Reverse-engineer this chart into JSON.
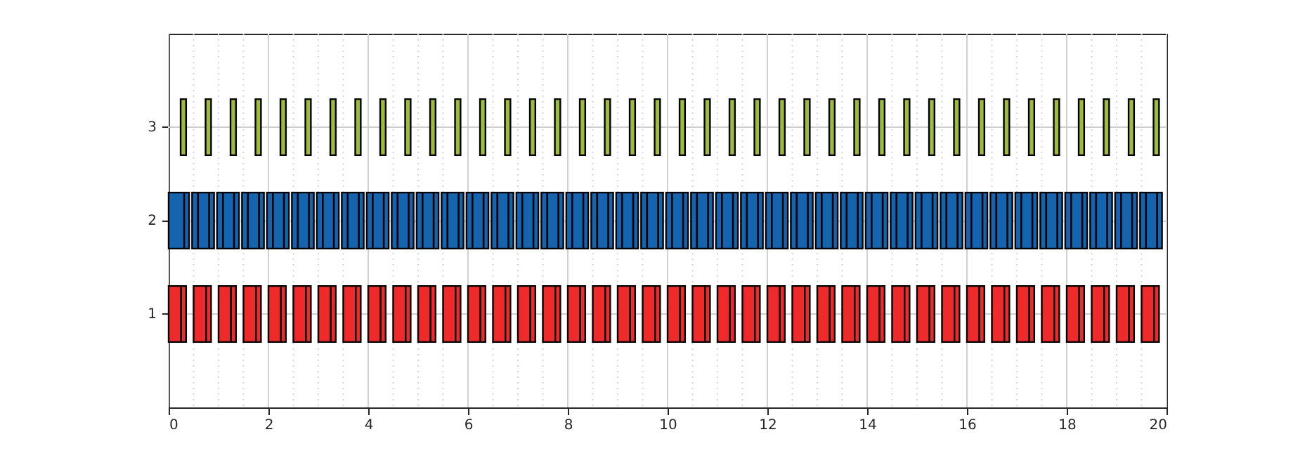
{
  "chart_data": {
    "type": "bar",
    "orientation": "horizontal",
    "categories": [
      "3",
      "2",
      "1"
    ],
    "xlim": [
      0,
      20
    ],
    "xticks": [
      0,
      {
        "value": 0.5,
        "label": null
      },
      {
        "value": 1,
        "label": null
      },
      {
        "value": 1.5,
        "label": null
      },
      2,
      {
        "value": 2.5,
        "label": null
      },
      {
        "value": 3,
        "label": null
      },
      {
        "value": 3.5,
        "label": null
      },
      4,
      {
        "value": 4.5,
        "label": null
      },
      {
        "value": 5,
        "label": null
      },
      {
        "value": 5.5,
        "label": null
      },
      6,
      {
        "value": 6.5,
        "label": null
      },
      {
        "value": 7,
        "label": null
      },
      {
        "value": 7.5,
        "label": null
      },
      8,
      {
        "value": 8.5,
        "label": null
      },
      {
        "value": 9,
        "label": null
      },
      {
        "value": 9.5,
        "label": null
      },
      10,
      {
        "value": 10.5,
        "label": null
      },
      {
        "value": 11,
        "label": null
      },
      {
        "value": 11.5,
        "label": null
      },
      12,
      {
        "value": 12.5,
        "label": null
      },
      {
        "value": 13,
        "label": null
      },
      {
        "value": 13.5,
        "label": null
      },
      14,
      {
        "value": 14.5,
        "label": null
      },
      {
        "value": 15,
        "label": null
      },
      {
        "value": 15.5,
        "label": null
      },
      16,
      {
        "value": 16.5,
        "label": null
      },
      {
        "value": 17,
        "label": null
      },
      {
        "value": 17.5,
        "label": null
      },
      18,
      {
        "value": 18.5,
        "label": null
      },
      {
        "value": 19,
        "label": null
      },
      {
        "value": 19.5,
        "label": null
      },
      20
    ],
    "grid": true,
    "series": [
      {
        "colors": [
          "#9dbb3d",
          "#1464b0",
          "#ee2a2a"
        ],
        "base": [
          0.24,
          0.31,
          0
        ],
        "values": [
          0.11,
          0.1,
          0.25
        ]
      },
      {
        "colors": [
          null,
          null,
          "#ee2a2a"
        ],
        "base": [
          null,
          null,
          0.25
        ],
        "values": [
          null,
          null,
          0.1
        ]
      },
      {
        "colors": [
          null,
          "#1464b0",
          null
        ],
        "base": [
          null,
          0,
          null
        ],
        "values": [
          null,
          0.31,
          null
        ]
      },
      {
        "colors": [
          "#9dbb3d",
          "#1464b0",
          "#ee2a2a"
        ],
        "base": [
          0.74,
          0.81,
          0.5
        ],
        "values": [
          0.11,
          0.1,
          0.25
        ]
      },
      {
        "colors": [
          null,
          "#1464b0",
          "#ee2a2a"
        ],
        "base": [
          null,
          0.47,
          0.75
        ],
        "values": [
          null,
          0.12,
          0.1
        ]
      },
      {
        "colors": [
          null,
          "#1464b0",
          null
        ],
        "base": [
          null,
          0.59,
          null
        ],
        "values": [
          null,
          0.22,
          null
        ]
      },
      {
        "colors": [
          "#9dbb3d",
          "#1464b0",
          "#ee2a2a"
        ],
        "base": [
          1.24,
          1.31,
          1
        ],
        "values": [
          0.11,
          0.1,
          0.25
        ]
      },
      {
        "colors": [
          null,
          "#1464b0",
          "#ee2a2a"
        ],
        "base": [
          null,
          0.97,
          1.25
        ],
        "values": [
          null,
          0.12,
          0.1
        ]
      },
      {
        "colors": [
          null,
          "#1464b0",
          null
        ],
        "base": [
          null,
          1.09,
          null
        ],
        "values": [
          null,
          0.22,
          null
        ]
      },
      {
        "colors": [
          "#9dbb3d",
          "#1464b0",
          "#ee2a2a"
        ],
        "base": [
          1.74,
          1.81,
          1.5
        ],
        "values": [
          0.11,
          0.1,
          0.25
        ]
      },
      {
        "colors": [
          null,
          "#1464b0",
          "#ee2a2a"
        ],
        "base": [
          null,
          1.47,
          1.75
        ],
        "values": [
          null,
          0.12,
          0.1
        ]
      },
      {
        "colors": [
          null,
          "#1464b0",
          null
        ],
        "base": [
          null,
          1.59,
          null
        ],
        "values": [
          null,
          0.22,
          null
        ]
      },
      {
        "colors": [
          "#9dbb3d",
          "#1464b0",
          "#ee2a2a"
        ],
        "base": [
          2.24,
          2.31,
          2
        ],
        "values": [
          0.11,
          0.1,
          0.25
        ]
      },
      {
        "colors": [
          null,
          "#1464b0",
          "#ee2a2a"
        ],
        "base": [
          null,
          1.97,
          2.25
        ],
        "values": [
          null,
          0.12,
          0.1
        ]
      },
      {
        "colors": [
          null,
          "#1464b0",
          null
        ],
        "base": [
          null,
          2.09,
          null
        ],
        "values": [
          null,
          0.22,
          null
        ]
      },
      {
        "colors": [
          "#9dbb3d",
          "#1464b0",
          "#ee2a2a"
        ],
        "base": [
          2.74,
          2.81,
          2.5
        ],
        "values": [
          0.11,
          0.1,
          0.25
        ]
      },
      {
        "colors": [
          null,
          "#1464b0",
          "#ee2a2a"
        ],
        "base": [
          null,
          2.47,
          2.75
        ],
        "values": [
          null,
          0.12,
          0.1
        ]
      },
      {
        "colors": [
          null,
          "#1464b0",
          null
        ],
        "base": [
          null,
          2.59,
          null
        ],
        "values": [
          null,
          0.22,
          null
        ]
      },
      {
        "colors": [
          "#9dbb3d",
          "#1464b0",
          "#ee2a2a"
        ],
        "base": [
          3.24,
          3.31,
          3
        ],
        "values": [
          0.11,
          0.1,
          0.25
        ]
      },
      {
        "colors": [
          null,
          "#1464b0",
          "#ee2a2a"
        ],
        "base": [
          null,
          2.97,
          3.25
        ],
        "values": [
          null,
          0.12,
          0.1
        ]
      },
      {
        "colors": [
          null,
          "#1464b0",
          null
        ],
        "base": [
          null,
          3.09,
          null
        ],
        "values": [
          null,
          0.22,
          null
        ]
      },
      {
        "colors": [
          "#9dbb3d",
          "#1464b0",
          "#ee2a2a"
        ],
        "base": [
          3.74,
          3.81,
          3.5
        ],
        "values": [
          0.11,
          0.1,
          0.25
        ]
      },
      {
        "colors": [
          null,
          "#1464b0",
          "#ee2a2a"
        ],
        "base": [
          null,
          3.47,
          3.75
        ],
        "values": [
          null,
          0.12,
          0.1
        ]
      },
      {
        "colors": [
          null,
          "#1464b0",
          null
        ],
        "base": [
          null,
          3.59,
          null
        ],
        "values": [
          null,
          0.22,
          null
        ]
      },
      {
        "colors": [
          "#9dbb3d",
          "#1464b0",
          "#ee2a2a"
        ],
        "base": [
          4.24,
          4.31,
          4
        ],
        "values": [
          0.11,
          0.1,
          0.25
        ]
      },
      {
        "colors": [
          null,
          "#1464b0",
          "#ee2a2a"
        ],
        "base": [
          null,
          3.97,
          4.25
        ],
        "values": [
          null,
          0.12,
          0.1
        ]
      },
      {
        "colors": [
          null,
          "#1464b0",
          null
        ],
        "base": [
          null,
          4.09,
          null
        ],
        "values": [
          null,
          0.22,
          null
        ]
      },
      {
        "colors": [
          "#9dbb3d",
          "#1464b0",
          "#ee2a2a"
        ],
        "base": [
          4.74,
          4.81,
          4.5
        ],
        "values": [
          0.11,
          0.1,
          0.25
        ]
      },
      {
        "colors": [
          null,
          "#1464b0",
          "#ee2a2a"
        ],
        "base": [
          null,
          4.47,
          4.75
        ],
        "values": [
          null,
          0.12,
          0.1
        ]
      },
      {
        "colors": [
          null,
          "#1464b0",
          null
        ],
        "base": [
          null,
          4.59,
          null
        ],
        "values": [
          null,
          0.22,
          null
        ]
      },
      {
        "colors": [
          "#9dbb3d",
          "#1464b0",
          "#ee2a2a"
        ],
        "base": [
          5.24,
          5.31,
          5
        ],
        "values": [
          0.11,
          0.1,
          0.25
        ]
      },
      {
        "colors": [
          null,
          "#1464b0",
          "#ee2a2a"
        ],
        "base": [
          null,
          4.97,
          5.25
        ],
        "values": [
          null,
          0.12,
          0.1
        ]
      },
      {
        "colors": [
          null,
          "#1464b0",
          null
        ],
        "base": [
          null,
          5.09,
          null
        ],
        "values": [
          null,
          0.22,
          null
        ]
      },
      {
        "colors": [
          "#9dbb3d",
          "#1464b0",
          "#ee2a2a"
        ],
        "base": [
          5.74,
          5.81,
          5.5
        ],
        "values": [
          0.11,
          0.1,
          0.25
        ]
      },
      {
        "colors": [
          null,
          "#1464b0",
          "#ee2a2a"
        ],
        "base": [
          null,
          5.47,
          5.75
        ],
        "values": [
          null,
          0.12,
          0.1
        ]
      },
      {
        "colors": [
          null,
          "#1464b0",
          null
        ],
        "base": [
          null,
          5.59,
          null
        ],
        "values": [
          null,
          0.22,
          null
        ]
      },
      {
        "colors": [
          "#9dbb3d",
          "#1464b0",
          "#ee2a2a"
        ],
        "base": [
          6.24,
          6.31,
          6
        ],
        "values": [
          0.11,
          0.1,
          0.25
        ]
      },
      {
        "colors": [
          null,
          "#1464b0",
          "#ee2a2a"
        ],
        "base": [
          null,
          5.97,
          6.25
        ],
        "values": [
          null,
          0.12,
          0.1
        ]
      },
      {
        "colors": [
          null,
          "#1464b0",
          null
        ],
        "base": [
          null,
          6.09,
          null
        ],
        "values": [
          null,
          0.22,
          null
        ]
      },
      {
        "colors": [
          "#9dbb3d",
          "#1464b0",
          "#ee2a2a"
        ],
        "base": [
          6.74,
          6.81,
          6.5
        ],
        "values": [
          0.11,
          0.1,
          0.25
        ]
      },
      {
        "colors": [
          null,
          "#1464b0",
          "#ee2a2a"
        ],
        "base": [
          null,
          6.47,
          6.75
        ],
        "values": [
          null,
          0.12,
          0.1
        ]
      },
      {
        "colors": [
          null,
          "#1464b0",
          null
        ],
        "base": [
          null,
          6.59,
          null
        ],
        "values": [
          null,
          0.22,
          null
        ]
      },
      {
        "colors": [
          "#9dbb3d",
          "#1464b0",
          "#ee2a2a"
        ],
        "base": [
          7.24,
          7.31,
          7
        ],
        "values": [
          0.11,
          0.1,
          0.25
        ]
      },
      {
        "colors": [
          null,
          "#1464b0",
          "#ee2a2a"
        ],
        "base": [
          null,
          6.97,
          7.25
        ],
        "values": [
          null,
          0.12,
          0.1
        ]
      },
      {
        "colors": [
          null,
          "#1464b0",
          null
        ],
        "base": [
          null,
          7.09,
          null
        ],
        "values": [
          null,
          0.22,
          null
        ]
      },
      {
        "colors": [
          "#9dbb3d",
          "#1464b0",
          "#ee2a2a"
        ],
        "base": [
          7.74,
          7.81,
          7.5
        ],
        "values": [
          0.11,
          0.1,
          0.25
        ]
      },
      {
        "colors": [
          null,
          "#1464b0",
          "#ee2a2a"
        ],
        "base": [
          null,
          7.47,
          7.75
        ],
        "values": [
          null,
          0.12,
          0.1
        ]
      },
      {
        "colors": [
          null,
          "#1464b0",
          null
        ],
        "base": [
          null,
          7.59,
          null
        ],
        "values": [
          null,
          0.22,
          null
        ]
      },
      {
        "colors": [
          "#9dbb3d",
          "#1464b0",
          "#ee2a2a"
        ],
        "base": [
          8.24,
          8.31,
          8
        ],
        "values": [
          0.11,
          0.1,
          0.25
        ]
      },
      {
        "colors": [
          null,
          "#1464b0",
          "#ee2a2a"
        ],
        "base": [
          null,
          7.97,
          8.25
        ],
        "values": [
          null,
          0.12,
          0.1
        ]
      },
      {
        "colors": [
          null,
          "#1464b0",
          null
        ],
        "base": [
          null,
          8.09,
          null
        ],
        "values": [
          null,
          0.22,
          null
        ]
      },
      {
        "colors": [
          "#9dbb3d",
          "#1464b0",
          "#ee2a2a"
        ],
        "base": [
          8.74,
          8.81,
          8.5
        ],
        "values": [
          0.11,
          0.1,
          0.25
        ]
      },
      {
        "colors": [
          null,
          "#1464b0",
          "#ee2a2a"
        ],
        "base": [
          null,
          8.47,
          8.75
        ],
        "values": [
          null,
          0.12,
          0.1
        ]
      },
      {
        "colors": [
          null,
          "#1464b0",
          null
        ],
        "base": [
          null,
          8.59,
          null
        ],
        "values": [
          null,
          0.22,
          null
        ]
      },
      {
        "colors": [
          "#9dbb3d",
          "#1464b0",
          "#ee2a2a"
        ],
        "base": [
          9.24,
          9.31,
          9
        ],
        "values": [
          0.11,
          0.1,
          0.25
        ]
      },
      {
        "colors": [
          null,
          "#1464b0",
          "#ee2a2a"
        ],
        "base": [
          null,
          8.97,
          9.25
        ],
        "values": [
          null,
          0.12,
          0.1
        ]
      },
      {
        "colors": [
          null,
          "#1464b0",
          null
        ],
        "base": [
          null,
          9.09,
          null
        ],
        "values": [
          null,
          0.22,
          null
        ]
      },
      {
        "colors": [
          "#9dbb3d",
          "#1464b0",
          "#ee2a2a"
        ],
        "base": [
          9.74,
          9.81,
          9.5
        ],
        "values": [
          0.11,
          0.1,
          0.25
        ]
      },
      {
        "colors": [
          null,
          "#1464b0",
          "#ee2a2a"
        ],
        "base": [
          null,
          9.47,
          9.75
        ],
        "values": [
          null,
          0.12,
          0.1
        ]
      },
      {
        "colors": [
          null,
          "#1464b0",
          null
        ],
        "base": [
          null,
          9.59,
          null
        ],
        "values": [
          null,
          0.22,
          null
        ]
      },
      {
        "colors": [
          "#9dbb3d",
          "#1464b0",
          "#ee2a2a"
        ],
        "base": [
          10.24,
          10.31,
          10
        ],
        "values": [
          0.11,
          0.1,
          0.25
        ]
      },
      {
        "colors": [
          null,
          "#1464b0",
          "#ee2a2a"
        ],
        "base": [
          null,
          9.97,
          10.25
        ],
        "values": [
          null,
          0.12,
          0.1
        ]
      },
      {
        "colors": [
          null,
          "#1464b0",
          null
        ],
        "base": [
          null,
          10.09,
          null
        ],
        "values": [
          null,
          0.22,
          null
        ]
      },
      {
        "colors": [
          "#9dbb3d",
          "#1464b0",
          "#ee2a2a"
        ],
        "base": [
          10.74,
          10.81,
          10.5
        ],
        "values": [
          0.11,
          0.1,
          0.25
        ]
      },
      {
        "colors": [
          null,
          "#1464b0",
          "#ee2a2a"
        ],
        "base": [
          null,
          10.47,
          10.75
        ],
        "values": [
          null,
          0.12,
          0.1
        ]
      },
      {
        "colors": [
          null,
          "#1464b0",
          null
        ],
        "base": [
          null,
          10.59,
          null
        ],
        "values": [
          null,
          0.22,
          null
        ]
      },
      {
        "colors": [
          "#9dbb3d",
          "#1464b0",
          "#ee2a2a"
        ],
        "base": [
          11.24,
          11.31,
          11
        ],
        "values": [
          0.11,
          0.1,
          0.25
        ]
      },
      {
        "colors": [
          null,
          "#1464b0",
          "#ee2a2a"
        ],
        "base": [
          null,
          10.97,
          11.25
        ],
        "values": [
          null,
          0.12,
          0.1
        ]
      },
      {
        "colors": [
          null,
          "#1464b0",
          null
        ],
        "base": [
          null,
          11.09,
          null
        ],
        "values": [
          null,
          0.22,
          null
        ]
      },
      {
        "colors": [
          "#9dbb3d",
          "#1464b0",
          "#ee2a2a"
        ],
        "base": [
          11.74,
          11.81,
          11.5
        ],
        "values": [
          0.11,
          0.1,
          0.25
        ]
      },
      {
        "colors": [
          null,
          "#1464b0",
          "#ee2a2a"
        ],
        "base": [
          null,
          11.47,
          11.75
        ],
        "values": [
          null,
          0.12,
          0.1
        ]
      },
      {
        "colors": [
          null,
          "#1464b0",
          null
        ],
        "base": [
          null,
          11.59,
          null
        ],
        "values": [
          null,
          0.22,
          null
        ]
      },
      {
        "colors": [
          "#9dbb3d",
          "#1464b0",
          "#ee2a2a"
        ],
        "base": [
          12.24,
          12.31,
          12
        ],
        "values": [
          0.11,
          0.1,
          0.25
        ]
      },
      {
        "colors": [
          null,
          "#1464b0",
          "#ee2a2a"
        ],
        "base": [
          null,
          11.97,
          12.25
        ],
        "values": [
          null,
          0.12,
          0.1
        ]
      },
      {
        "colors": [
          null,
          "#1464b0",
          null
        ],
        "base": [
          null,
          12.09,
          null
        ],
        "values": [
          null,
          0.22,
          null
        ]
      },
      {
        "colors": [
          "#9dbb3d",
          "#1464b0",
          "#ee2a2a"
        ],
        "base": [
          12.74,
          12.81,
          12.5
        ],
        "values": [
          0.11,
          0.1,
          0.25
        ]
      },
      {
        "colors": [
          null,
          "#1464b0",
          "#ee2a2a"
        ],
        "base": [
          null,
          12.47,
          12.75
        ],
        "values": [
          null,
          0.12,
          0.1
        ]
      },
      {
        "colors": [
          null,
          "#1464b0",
          null
        ],
        "base": [
          null,
          12.59,
          null
        ],
        "values": [
          null,
          0.22,
          null
        ]
      },
      {
        "colors": [
          "#9dbb3d",
          "#1464b0",
          "#ee2a2a"
        ],
        "base": [
          13.24,
          13.31,
          13
        ],
        "values": [
          0.11,
          0.1,
          0.25
        ]
      },
      {
        "colors": [
          null,
          "#1464b0",
          "#ee2a2a"
        ],
        "base": [
          null,
          12.97,
          13.25
        ],
        "values": [
          null,
          0.12,
          0.1
        ]
      },
      {
        "colors": [
          null,
          "#1464b0",
          null
        ],
        "base": [
          null,
          13.09,
          null
        ],
        "values": [
          null,
          0.22,
          null
        ]
      },
      {
        "colors": [
          "#9dbb3d",
          "#1464b0",
          "#ee2a2a"
        ],
        "base": [
          13.74,
          13.81,
          13.5
        ],
        "values": [
          0.11,
          0.1,
          0.25
        ]
      },
      {
        "colors": [
          null,
          "#1464b0",
          "#ee2a2a"
        ],
        "base": [
          null,
          13.47,
          13.75
        ],
        "values": [
          null,
          0.12,
          0.1
        ]
      },
      {
        "colors": [
          null,
          "#1464b0",
          null
        ],
        "base": [
          null,
          13.59,
          null
        ],
        "values": [
          null,
          0.22,
          null
        ]
      },
      {
        "colors": [
          "#9dbb3d",
          "#1464b0",
          "#ee2a2a"
        ],
        "base": [
          14.24,
          14.31,
          14
        ],
        "values": [
          0.11,
          0.1,
          0.25
        ]
      },
      {
        "colors": [
          null,
          "#1464b0",
          "#ee2a2a"
        ],
        "base": [
          null,
          13.97,
          14.25
        ],
        "values": [
          null,
          0.12,
          0.1
        ]
      },
      {
        "colors": [
          null,
          "#1464b0",
          null
        ],
        "base": [
          null,
          14.09,
          null
        ],
        "values": [
          null,
          0.22,
          null
        ]
      },
      {
        "colors": [
          "#9dbb3d",
          "#1464b0",
          "#ee2a2a"
        ],
        "base": [
          14.74,
          14.81,
          14.5
        ],
        "values": [
          0.11,
          0.1,
          0.25
        ]
      },
      {
        "colors": [
          null,
          "#1464b0",
          "#ee2a2a"
        ],
        "base": [
          null,
          14.47,
          14.75
        ],
        "values": [
          null,
          0.12,
          0.1
        ]
      },
      {
        "colors": [
          null,
          "#1464b0",
          null
        ],
        "base": [
          null,
          14.59,
          null
        ],
        "values": [
          null,
          0.22,
          null
        ]
      },
      {
        "colors": [
          "#9dbb3d",
          "#1464b0",
          "#ee2a2a"
        ],
        "base": [
          15.24,
          15.31,
          15
        ],
        "values": [
          0.11,
          0.1,
          0.25
        ]
      },
      {
        "colors": [
          null,
          "#1464b0",
          "#ee2a2a"
        ],
        "base": [
          null,
          14.97,
          15.25
        ],
        "values": [
          null,
          0.12,
          0.1
        ]
      },
      {
        "colors": [
          null,
          "#1464b0",
          null
        ],
        "base": [
          null,
          15.09,
          null
        ],
        "values": [
          null,
          0.22,
          null
        ]
      },
      {
        "colors": [
          "#9dbb3d",
          "#1464b0",
          "#ee2a2a"
        ],
        "base": [
          15.74,
          15.81,
          15.5
        ],
        "values": [
          0.11,
          0.1,
          0.25
        ]
      },
      {
        "colors": [
          null,
          "#1464b0",
          "#ee2a2a"
        ],
        "base": [
          null,
          15.47,
          15.75
        ],
        "values": [
          null,
          0.12,
          0.1
        ]
      },
      {
        "colors": [
          null,
          "#1464b0",
          null
        ],
        "base": [
          null,
          15.59,
          null
        ],
        "values": [
          null,
          0.22,
          null
        ]
      },
      {
        "colors": [
          "#9dbb3d",
          "#1464b0",
          "#ee2a2a"
        ],
        "base": [
          16.24,
          16.31,
          16
        ],
        "values": [
          0.11,
          0.1,
          0.25
        ]
      },
      {
        "colors": [
          null,
          "#1464b0",
          "#ee2a2a"
        ],
        "base": [
          null,
          15.97,
          16.25
        ],
        "values": [
          null,
          0.12,
          0.1
        ]
      },
      {
        "colors": [
          null,
          "#1464b0",
          null
        ],
        "base": [
          null,
          16.09,
          null
        ],
        "values": [
          null,
          0.22,
          null
        ]
      },
      {
        "colors": [
          "#9dbb3d",
          "#1464b0",
          "#ee2a2a"
        ],
        "base": [
          16.74,
          16.81,
          16.5
        ],
        "values": [
          0.11,
          0.1,
          0.25
        ]
      },
      {
        "colors": [
          null,
          "#1464b0",
          "#ee2a2a"
        ],
        "base": [
          null,
          16.47,
          16.75
        ],
        "values": [
          null,
          0.12,
          0.1
        ]
      },
      {
        "colors": [
          null,
          "#1464b0",
          null
        ],
        "base": [
          null,
          16.59,
          null
        ],
        "values": [
          null,
          0.22,
          null
        ]
      },
      {
        "colors": [
          "#9dbb3d",
          "#1464b0",
          "#ee2a2a"
        ],
        "base": [
          17.24,
          17.31,
          17
        ],
        "values": [
          0.11,
          0.1,
          0.25
        ]
      },
      {
        "colors": [
          null,
          "#1464b0",
          "#ee2a2a"
        ],
        "base": [
          null,
          16.97,
          17.25
        ],
        "values": [
          null,
          0.12,
          0.1
        ]
      },
      {
        "colors": [
          null,
          "#1464b0",
          null
        ],
        "base": [
          null,
          17.09,
          null
        ],
        "values": [
          null,
          0.22,
          null
        ]
      },
      {
        "colors": [
          "#9dbb3d",
          "#1464b0",
          "#ee2a2a"
        ],
        "base": [
          17.74,
          17.81,
          17.5
        ],
        "values": [
          0.11,
          0.1,
          0.25
        ]
      },
      {
        "colors": [
          null,
          "#1464b0",
          "#ee2a2a"
        ],
        "base": [
          null,
          17.47,
          17.75
        ],
        "values": [
          null,
          0.12,
          0.1
        ]
      },
      {
        "colors": [
          null,
          "#1464b0",
          null
        ],
        "base": [
          null,
          17.59,
          null
        ],
        "values": [
          null,
          0.22,
          null
        ]
      },
      {
        "colors": [
          "#9dbb3d",
          "#1464b0",
          "#ee2a2a"
        ],
        "base": [
          18.24,
          18.31,
          18
        ],
        "values": [
          0.11,
          0.1,
          0.25
        ]
      },
      {
        "colors": [
          null,
          "#1464b0",
          "#ee2a2a"
        ],
        "base": [
          null,
          17.97,
          18.25
        ],
        "values": [
          null,
          0.12,
          0.1
        ]
      },
      {
        "colors": [
          null,
          "#1464b0",
          null
        ],
        "base": [
          null,
          18.09,
          null
        ],
        "values": [
          null,
          0.22,
          null
        ]
      },
      {
        "colors": [
          "#9dbb3d",
          "#1464b0",
          "#ee2a2a"
        ],
        "base": [
          18.74,
          18.81,
          18.5
        ],
        "values": [
          0.11,
          0.1,
          0.25
        ]
      },
      {
        "colors": [
          null,
          "#1464b0",
          "#ee2a2a"
        ],
        "base": [
          null,
          18.47,
          18.75
        ],
        "values": [
          null,
          0.12,
          0.1
        ]
      },
      {
        "colors": [
          null,
          "#1464b0",
          null
        ],
        "base": [
          null,
          18.59,
          null
        ],
        "values": [
          null,
          0.22,
          null
        ]
      },
      {
        "colors": [
          "#9dbb3d",
          "#1464b0",
          "#ee2a2a"
        ],
        "base": [
          19.24,
          19.31,
          19
        ],
        "values": [
          0.11,
          0.1,
          0.25
        ]
      },
      {
        "colors": [
          null,
          "#1464b0",
          "#ee2a2a"
        ],
        "base": [
          null,
          18.97,
          19.25
        ],
        "values": [
          null,
          0.12,
          0.1
        ]
      },
      {
        "colors": [
          null,
          "#1464b0",
          null
        ],
        "base": [
          null,
          19.09,
          null
        ],
        "values": [
          null,
          0.22,
          null
        ]
      },
      {
        "colors": [
          "#9dbb3d",
          "#1464b0",
          "#ee2a2a"
        ],
        "base": [
          19.74,
          19.81,
          19.5
        ],
        "values": [
          0.11,
          0.1,
          0.25
        ]
      },
      {
        "colors": [
          null,
          "#1464b0",
          "#ee2a2a"
        ],
        "base": [
          null,
          19.47,
          19.75
        ],
        "values": [
          null,
          0.12,
          0.1
        ]
      },
      {
        "colors": [
          null,
          "#1464b0",
          null
        ],
        "base": [
          null,
          19.59,
          null
        ],
        "values": [
          null,
          0.22,
          null
        ]
      }
    ]
  }
}
